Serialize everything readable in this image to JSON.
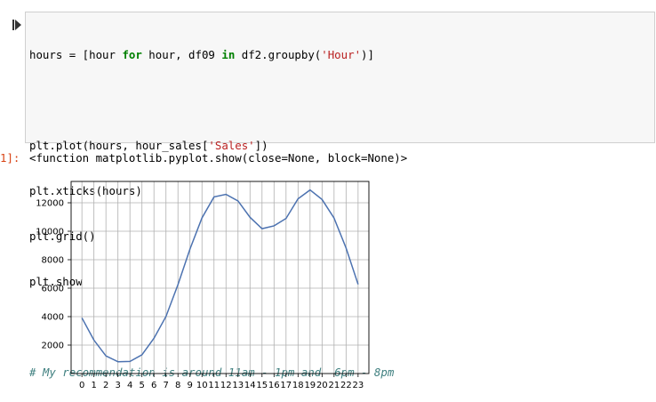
{
  "cell": {
    "code": {
      "l1": {
        "a": "hours = [hour ",
        "kw1": "for",
        "b": " hour, df09 ",
        "kw2": "in",
        "c": " df2.groupby(",
        "s": "'Hour'",
        "d": ")]"
      },
      "l2": {
        "a": "plt.plot(hours, hour_sales[",
        "s": "'Sales'",
        "b": "])"
      },
      "l3": "plt.xticks(hours)",
      "l4": "plt.grid()",
      "l5": "plt.show",
      "l6": "# My recommendation is around 11am - 1pm and  6pm - 8pm"
    },
    "output_prompt": "1]:",
    "output_text": "<function matplotlib.pyplot.show(close=None, block=None)>"
  },
  "colors": {
    "line": "#4c72b0",
    "grid": "#b0b0b0",
    "keyword": "#008000",
    "string": "#ba2121",
    "comment": "#408080"
  },
  "icons": {
    "run": "run-cell-icon"
  },
  "chart_data": {
    "type": "line",
    "x": [
      0,
      1,
      2,
      3,
      4,
      5,
      6,
      7,
      8,
      9,
      10,
      11,
      12,
      13,
      14,
      15,
      16,
      17,
      18,
      19,
      20,
      21,
      22,
      23
    ],
    "x_tick_labels": [
      "0",
      "1",
      "2",
      "3",
      "4",
      "5",
      "6",
      "7",
      "8",
      "9",
      "10",
      "11",
      "12",
      "13",
      "14",
      "15",
      "16",
      "17",
      "18",
      "19",
      "20",
      "21",
      "22",
      "23"
    ],
    "series": [
      {
        "values": [
          3910,
          2350,
          1240,
          830,
          850,
          1320,
          2480,
          4010,
          6250,
          8750,
          10940,
          12410,
          12590,
          12130,
          10980,
          10180,
          10380,
          10900,
          12280,
          12900,
          12230,
          10920,
          8820,
          6270
        ]
      }
    ],
    "y_ticks": [
      2000,
      4000,
      6000,
      8000,
      10000,
      12000
    ],
    "y_tick_labels": [
      "2000",
      "4000",
      "6000",
      "8000",
      "10000",
      "12000"
    ],
    "ylim": [
      0,
      13500
    ],
    "xlim": [
      -0.9,
      23.9
    ],
    "grid": true,
    "title": "",
    "xlabel": "",
    "ylabel": ""
  }
}
